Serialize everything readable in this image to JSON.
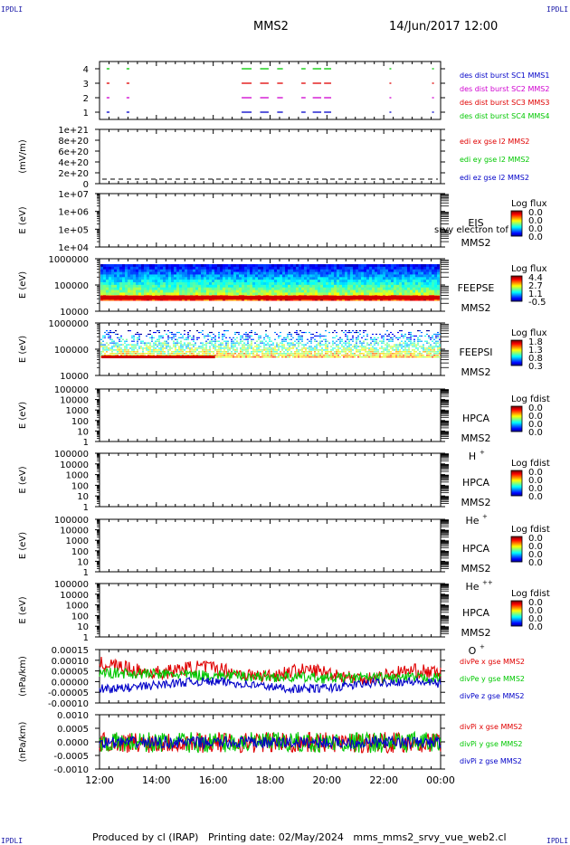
{
  "header": {
    "title": "MMS2",
    "date": "14/Jun/2017 12:00",
    "corner_label": "IPDLI"
  },
  "footer": {
    "text": "Produced by cl (IRAP)   Printing date: 02/May/2024   mms_mms2_srvy_vue_web2.cl"
  },
  "colors": {
    "red": "#e00000",
    "green": "#00c800",
    "blue": "#0000c8",
    "magenta": "#d000d0"
  },
  "chart_data": [
    {
      "type": "timeline",
      "id": "burst",
      "yticks": [
        "4",
        "3",
        "2",
        "1"
      ],
      "legend": [
        {
          "text": "des dist burst SC1 MMS1",
          "color": "#0000c8"
        },
        {
          "text": "des dist burst SC2 MMS2",
          "color": "#d000d0"
        },
        {
          "text": "des dist burst SC3 MMS3",
          "color": "#e00000"
        },
        {
          "text": "des dist burst SC4 MMS4",
          "color": "#00c800"
        }
      ],
      "segments_hours": [
        [
          12.25,
          12.35
        ],
        [
          12.95,
          13.05
        ],
        [
          17.0,
          17.35
        ],
        [
          17.65,
          17.95
        ],
        [
          18.25,
          18.45
        ],
        [
          19.1,
          19.25
        ],
        [
          19.5,
          19.8
        ],
        [
          19.9,
          20.15
        ],
        [
          22.2,
          22.25
        ],
        [
          23.7,
          23.75
        ]
      ]
    },
    {
      "type": "line",
      "id": "edi",
      "ylabel": "(mV/m)",
      "yticks": [
        "1e+21",
        "8e+20",
        "6e+20",
        "4e+20",
        "2e+20",
        "0"
      ],
      "legend": [
        {
          "text": "edi ex gse l2 MMS2",
          "color": "#e00000"
        },
        {
          "text": "edi ey gse l2 MMS2",
          "color": "#00c800"
        },
        {
          "text": "edi ez gse l2 MMS2",
          "color": "#0000c8"
        }
      ]
    },
    {
      "type": "spectrogram",
      "id": "eis",
      "ylabel": "E (eV)",
      "yticks": [
        "1e+07",
        "1e+06",
        "1e+05",
        "1e+04"
      ],
      "labels": [
        "EIS",
        "MMS2"
      ],
      "overlap_text": "srvy electron tof",
      "colorbar": {
        "title": "Log flux",
        "ticks": [
          "0.0",
          "0.0",
          "0.0",
          "0.0"
        ]
      }
    },
    {
      "type": "spectrogram",
      "id": "feepse",
      "ylabel": "E (eV)",
      "yticks": [
        "1000000",
        "100000",
        "10000"
      ],
      "labels": [
        "FEEPSE",
        "MMS2"
      ],
      "colorbar": {
        "title": "Log flux",
        "ticks": [
          "4.4",
          "2.7",
          "1.1",
          "-0.5"
        ]
      }
    },
    {
      "type": "spectrogram",
      "id": "feepsi",
      "ylabel": "E (eV)",
      "yticks": [
        "1000000",
        "100000",
        "10000"
      ],
      "labels": [
        "FEEPSI",
        "MMS2"
      ],
      "colorbar": {
        "title": "Log flux",
        "ticks": [
          "1.8",
          "1.3",
          "0.8",
          "0.3"
        ]
      }
    },
    {
      "type": "spectrogram",
      "id": "hpca-h",
      "ylabel": "E (eV)",
      "yticks": [
        "100000",
        "10000",
        "1000",
        "100",
        "10",
        "1"
      ],
      "labels": [
        "HPCA",
        "MMS2",
        "H",
        "+"
      ],
      "colorbar": {
        "title": "Log fdist",
        "ticks": [
          "0.0",
          "0.0",
          "0.0",
          "0.0"
        ]
      }
    },
    {
      "type": "spectrogram",
      "id": "hpca-he",
      "ylabel": "E (eV)",
      "yticks": [
        "100000",
        "10000",
        "1000",
        "100",
        "10",
        "1"
      ],
      "labels": [
        "HPCA",
        "MMS2",
        "He",
        "+"
      ],
      "colorbar": {
        "title": "Log fdist",
        "ticks": [
          "0.0",
          "0.0",
          "0.0",
          "0.0"
        ]
      }
    },
    {
      "type": "spectrogram",
      "id": "hpca-he2",
      "ylabel": "E (eV)",
      "yticks": [
        "100000",
        "10000",
        "1000",
        "100",
        "10",
        "1"
      ],
      "labels": [
        "HPCA",
        "MMS2",
        "He",
        "++"
      ],
      "colorbar": {
        "title": "Log fdist",
        "ticks": [
          "0.0",
          "0.0",
          "0.0",
          "0.0"
        ]
      }
    },
    {
      "type": "spectrogram",
      "id": "hpca-o",
      "ylabel": "E (eV)",
      "yticks": [
        "100000",
        "10000",
        "1000",
        "100",
        "10",
        "1"
      ],
      "labels": [
        "HPCA",
        "MMS2",
        "O",
        "+"
      ],
      "colorbar": {
        "title": "Log fdist",
        "ticks": [
          "0.0",
          "0.0",
          "0.0",
          "0.0"
        ]
      }
    },
    {
      "type": "line",
      "id": "divpe",
      "ylabel": "(nPa/km)",
      "yticks": [
        "0.00015",
        "0.00010",
        "0.00005",
        "0.00000",
        "-0.00005",
        "-0.00010"
      ],
      "ylim": [
        -0.00011,
        0.00019
      ],
      "legend": [
        {
          "text": "divPe x gse MMS2",
          "color": "#e00000"
        },
        {
          "text": "divPe y gse MMS2",
          "color": "#00c800"
        },
        {
          "text": "divPe z gse MMS2",
          "color": "#0000c8"
        }
      ]
    },
    {
      "type": "line",
      "id": "divpi",
      "ylabel": "(nPa/km)",
      "yticks": [
        "0.0010",
        "0.0005",
        "0.0000",
        "-0.0005",
        "-0.0010"
      ],
      "ylim": [
        -0.00115,
        0.0012
      ],
      "legend": [
        {
          "text": "divPi x gse MMS2",
          "color": "#e00000"
        },
        {
          "text": "divPi y gse MMS2",
          "color": "#00c800"
        },
        {
          "text": "divPi z gse MMS2",
          "color": "#0000c8"
        }
      ]
    }
  ],
  "xaxis": {
    "ticks": [
      "12:00",
      "14:00",
      "16:00",
      "18:00",
      "20:00",
      "22:00",
      "00:00"
    ],
    "start_hour": 12,
    "end_hour": 24
  }
}
